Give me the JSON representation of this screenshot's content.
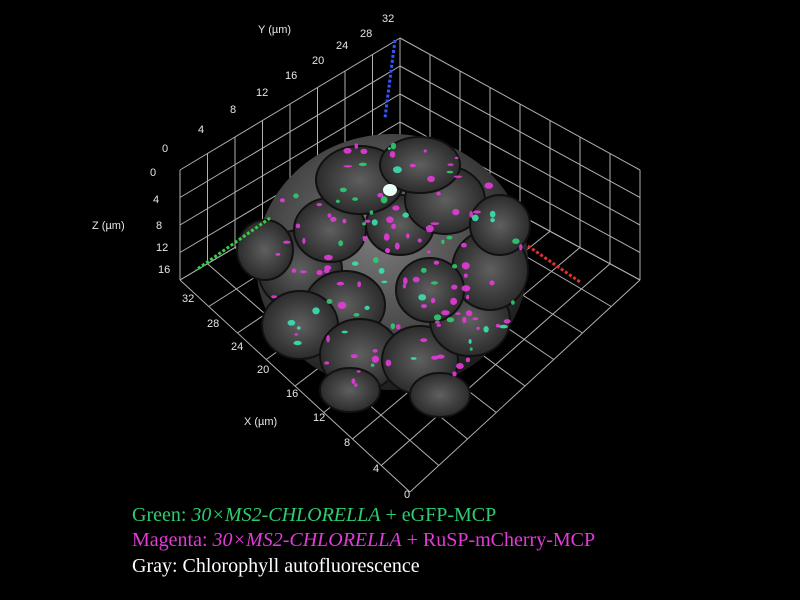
{
  "colors": {
    "green": "#2ecc71",
    "magenta": "#e33bd8",
    "gray": "#ffffff",
    "grid": "#cfcfcf"
  },
  "axes": {
    "x": {
      "label": "X (µm)",
      "ticks": [
        "0",
        "4",
        "8",
        "12",
        "16",
        "20",
        "24",
        "28",
        "32"
      ]
    },
    "y": {
      "label": "Y (µm)",
      "ticks": [
        "0",
        "4",
        "8",
        "12",
        "16",
        "20",
        "24",
        "28",
        "32"
      ]
    },
    "z": {
      "label": "Z (µm)",
      "ticks": [
        "0",
        "4",
        "8",
        "12",
        "16"
      ]
    }
  },
  "legend": {
    "green": {
      "prefix": "Green: ",
      "gene": "30×MS2-CHLORELLA",
      "suffix": " + eGFP-MCP"
    },
    "magenta": {
      "prefix": "Magenta: ",
      "gene": "30×MS2-CHLORELLA",
      "suffix": " + RuSP-mCherry-MCP"
    },
    "gray": {
      "text": "Gray: Chlorophyll autofluorescence"
    }
  }
}
